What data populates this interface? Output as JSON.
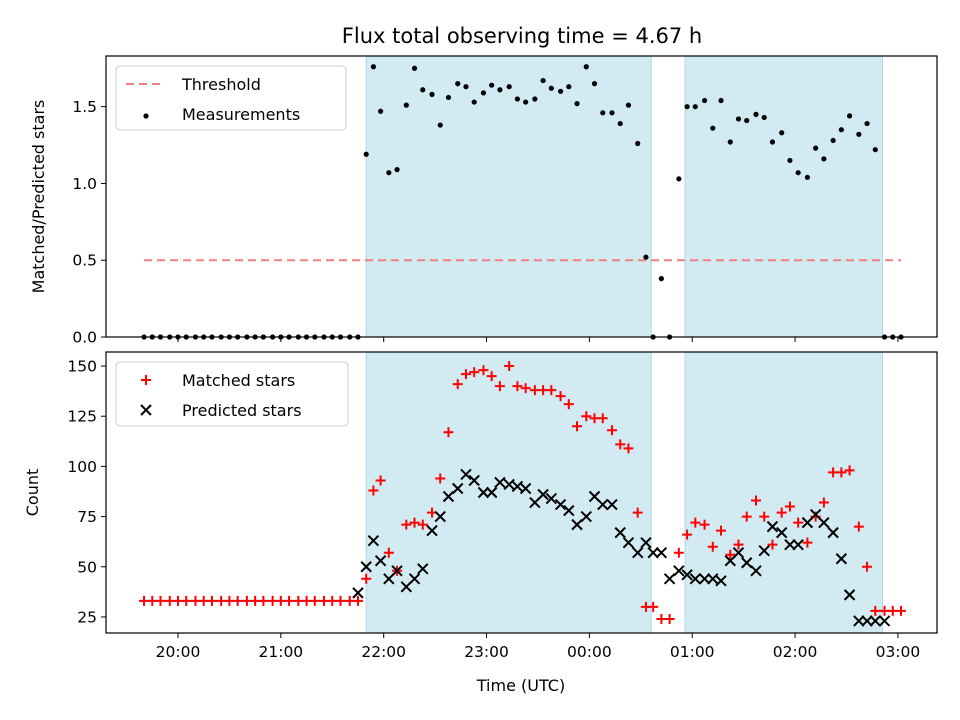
{
  "figure": {
    "title": "Flux total observing time = 4.67 h",
    "xlabel": "Time (UTC)",
    "xticks": [
      {
        "x": 20.0,
        "label": "20:00"
      },
      {
        "x": 21.0,
        "label": "21:00"
      },
      {
        "x": 22.0,
        "label": "22:00"
      },
      {
        "x": 23.0,
        "label": "23:00"
      },
      {
        "x": 24.0,
        "label": "00:00"
      },
      {
        "x": 25.0,
        "label": "01:00"
      },
      {
        "x": 26.0,
        "label": "02:00"
      },
      {
        "x": 27.0,
        "label": "03:00"
      }
    ],
    "x_unit_note": "hours UTC, continuing past midnight",
    "shaded_intervals": [
      [
        21.83,
        24.6
      ],
      [
        24.93,
        26.85
      ]
    ],
    "colors": {
      "shade": "#add8e6",
      "matched": "#ff0000",
      "predicted": "#000000",
      "threshold": "#f08080",
      "measurement": "#000000"
    }
  },
  "chart_data": [
    {
      "type": "scatter",
      "ylabel": "Matched/Predicted stars",
      "xlim": [
        19.3,
        27.38
      ],
      "ylim": [
        0,
        1.83
      ],
      "yticks": [
        {
          "y": 0.0,
          "label": "0.0"
        },
        {
          "y": 0.5,
          "label": "0.5"
        },
        {
          "y": 1.0,
          "label": "1.0"
        },
        {
          "y": 1.5,
          "label": "1.5"
        }
      ],
      "legend": {
        "placement": "top-left",
        "entries": [
          {
            "key": "threshold",
            "label": "Threshold"
          },
          {
            "key": "measurements",
            "label": "Measurements"
          }
        ]
      },
      "threshold": {
        "value": 0.5,
        "x": [
          19.67,
          27.03
        ]
      },
      "series": [
        {
          "name": "Measurements",
          "x": [
            19.67,
            19.75,
            19.83,
            19.92,
            20.0,
            20.08,
            20.17,
            20.25,
            20.33,
            20.42,
            20.5,
            20.58,
            20.67,
            20.75,
            20.83,
            20.92,
            21.0,
            21.08,
            21.17,
            21.25,
            21.33,
            21.42,
            21.5,
            21.58,
            21.67,
            21.75,
            21.83,
            21.9,
            21.97,
            22.05,
            22.13,
            22.22,
            22.3,
            22.38,
            22.47,
            22.55,
            22.63,
            22.72,
            22.8,
            22.88,
            22.97,
            23.05,
            23.13,
            23.22,
            23.3,
            23.38,
            23.47,
            23.55,
            23.63,
            23.72,
            23.8,
            23.88,
            23.97,
            24.05,
            24.13,
            24.22,
            24.3,
            24.38,
            24.47,
            24.55,
            24.62,
            24.7,
            24.78,
            24.87,
            24.95,
            25.03,
            25.12,
            25.2,
            25.28,
            25.37,
            25.45,
            25.53,
            25.62,
            25.7,
            25.78,
            25.87,
            25.95,
            26.03,
            26.12,
            26.2,
            26.28,
            26.37,
            26.45,
            26.53,
            26.62,
            26.7,
            26.78,
            26.87,
            26.95,
            27.03
          ],
          "y": [
            0.0,
            0.0,
            0.0,
            0.0,
            0.0,
            0.0,
            0.0,
            0.0,
            0.0,
            0.0,
            0.0,
            0.0,
            0.0,
            0.0,
            0.0,
            0.0,
            0.0,
            0.0,
            0.0,
            0.0,
            0.0,
            0.0,
            0.0,
            0.0,
            0.0,
            0.0,
            1.19,
            1.76,
            1.47,
            1.07,
            1.09,
            1.51,
            1.75,
            1.61,
            1.58,
            1.38,
            1.56,
            1.65,
            1.63,
            1.53,
            1.59,
            1.64,
            1.61,
            1.63,
            1.55,
            1.53,
            1.55,
            1.67,
            1.62,
            1.6,
            1.63,
            1.52,
            1.76,
            1.65,
            1.46,
            1.46,
            1.39,
            1.51,
            1.26,
            0.52,
            0.0,
            0.38,
            0.0,
            1.03,
            1.5,
            1.5,
            1.54,
            1.36,
            1.54,
            1.27,
            1.42,
            1.41,
            1.45,
            1.43,
            1.27,
            1.33,
            1.15,
            1.07,
            1.04,
            1.23,
            1.16,
            1.28,
            1.35,
            1.44,
            1.32,
            1.39,
            1.22,
            0.0,
            0.0,
            0.0
          ]
        }
      ]
    },
    {
      "type": "scatter",
      "ylabel": "Count",
      "xlim": [
        19.3,
        27.38
      ],
      "ylim": [
        17,
        157
      ],
      "yticks": [
        {
          "y": 25,
          "label": "25"
        },
        {
          "y": 50,
          "label": "50"
        },
        {
          "y": 75,
          "label": "75"
        },
        {
          "y": 100,
          "label": "100"
        },
        {
          "y": 125,
          "label": "125"
        },
        {
          "y": 150,
          "label": "150"
        }
      ],
      "legend": {
        "placement": "top-left",
        "entries": [
          {
            "key": "matched",
            "label": "Matched stars"
          },
          {
            "key": "predicted",
            "label": "Predicted stars"
          }
        ]
      },
      "series": [
        {
          "name": "Matched stars",
          "marker": "plus",
          "x": [
            19.67,
            19.75,
            19.83,
            19.92,
            20.0,
            20.08,
            20.17,
            20.25,
            20.33,
            20.42,
            20.5,
            20.58,
            20.67,
            20.75,
            20.83,
            20.92,
            21.0,
            21.08,
            21.17,
            21.25,
            21.33,
            21.42,
            21.5,
            21.58,
            21.67,
            21.75,
            21.83,
            21.9,
            21.97,
            22.05,
            22.13,
            22.22,
            22.3,
            22.38,
            22.47,
            22.55,
            22.63,
            22.72,
            22.8,
            22.88,
            22.97,
            23.05,
            23.13,
            23.22,
            23.3,
            23.38,
            23.47,
            23.55,
            23.63,
            23.72,
            23.8,
            23.88,
            23.97,
            24.05,
            24.13,
            24.22,
            24.3,
            24.38,
            24.47,
            24.55,
            24.62,
            24.7,
            24.78,
            24.87,
            24.95,
            25.03,
            25.12,
            25.2,
            25.28,
            25.37,
            25.45,
            25.53,
            25.62,
            25.7,
            25.78,
            25.87,
            25.95,
            26.03,
            26.12,
            26.2,
            26.28,
            26.37,
            26.45,
            26.53,
            26.62,
            26.7,
            26.78,
            26.87,
            26.95,
            27.03
          ],
          "y": [
            33,
            33,
            33,
            33,
            33,
            33,
            33,
            33,
            33,
            33,
            33,
            33,
            33,
            33,
            33,
            33,
            33,
            33,
            33,
            33,
            33,
            33,
            33,
            33,
            33,
            33,
            44,
            88,
            93,
            57,
            48,
            71,
            72,
            71,
            77,
            94,
            117,
            141,
            146,
            147,
            148,
            145,
            140,
            150,
            140,
            139,
            138,
            138,
            138,
            135,
            131,
            120,
            125,
            124,
            124,
            118,
            111,
            109,
            77,
            30,
            30,
            24,
            24,
            57,
            66,
            72,
            71,
            60,
            68,
            56,
            61,
            75,
            83,
            75,
            61,
            77,
            80,
            72,
            62,
            75,
            82,
            97,
            97,
            98,
            70,
            50,
            28,
            28,
            28,
            28
          ]
        },
        {
          "name": "Predicted stars",
          "marker": "x",
          "x": [
            21.75,
            21.83,
            21.9,
            21.97,
            22.05,
            22.13,
            22.22,
            22.3,
            22.38,
            22.47,
            22.55,
            22.63,
            22.72,
            22.8,
            22.88,
            22.97,
            23.05,
            23.13,
            23.22,
            23.3,
            23.38,
            23.47,
            23.55,
            23.63,
            23.72,
            23.8,
            23.88,
            23.97,
            24.05,
            24.13,
            24.22,
            24.3,
            24.38,
            24.47,
            24.55,
            24.62,
            24.7,
            24.78,
            24.87,
            24.95,
            25.03,
            25.12,
            25.2,
            25.28,
            25.37,
            25.45,
            25.53,
            25.62,
            25.7,
            25.78,
            25.87,
            25.95,
            26.03,
            26.12,
            26.2,
            26.28,
            26.37,
            26.45,
            26.53,
            26.62,
            26.7,
            26.78,
            26.87
          ],
          "y": [
            37,
            50,
            63,
            53,
            44,
            48,
            40,
            44,
            49,
            68,
            75,
            85,
            89,
            96,
            93,
            87,
            87,
            92,
            91,
            90,
            89,
            82,
            86,
            84,
            81,
            78,
            71,
            75,
            85,
            81,
            81,
            67,
            62,
            57,
            62,
            57,
            57,
            44,
            48,
            46,
            44,
            44,
            44,
            43,
            53,
            57,
            52,
            48,
            58,
            70,
            67,
            61,
            61,
            72,
            76,
            72,
            67,
            54,
            36,
            23,
            23,
            23,
            23
          ]
        }
      ]
    }
  ]
}
